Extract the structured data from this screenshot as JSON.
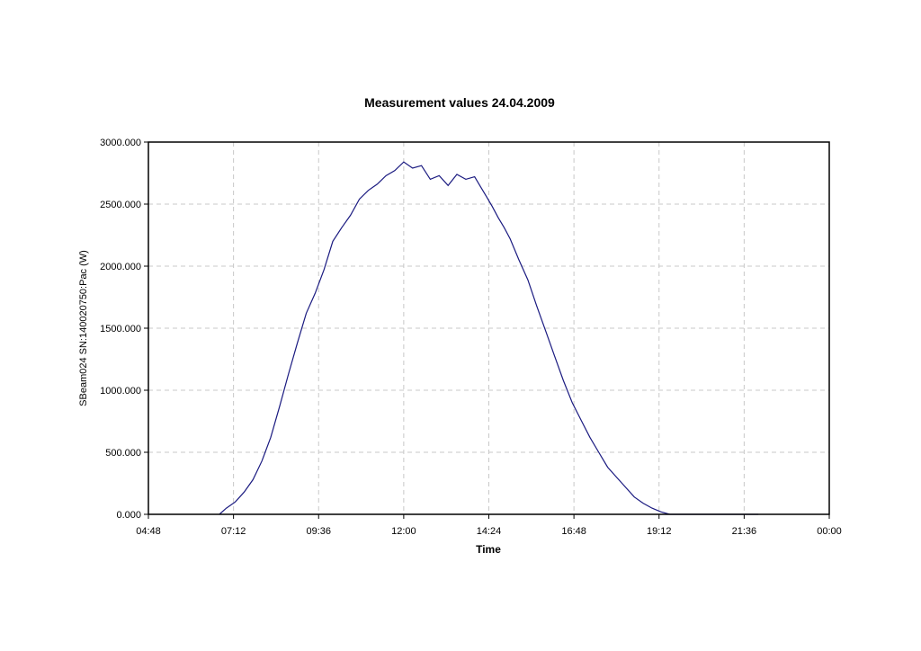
{
  "chart_data": {
    "type": "line",
    "title": "Measurement values 24.04.2009",
    "xlabel": "Time",
    "ylabel": "SBeam024 SN:140020750:Pac (W)",
    "x_ticks": [
      "04:48",
      "07:12",
      "09:36",
      "12:00",
      "14:24",
      "16:48",
      "19:12",
      "21:36",
      "00:00"
    ],
    "y_ticks": [
      "0.000",
      "500.000",
      "1000.000",
      "1500.000",
      "2000.000",
      "2500.000",
      "3000.000"
    ],
    "xlim": [
      "04:48",
      "00:00"
    ],
    "ylim": [
      0,
      3000
    ],
    "grid": true,
    "line_color": "#1a1a80",
    "series": [
      {
        "x": [
          "06:48",
          "07:00",
          "07:15",
          "07:30",
          "07:45",
          "08:00",
          "08:15",
          "08:30",
          "08:45",
          "09:00",
          "09:15",
          "09:30",
          "09:45",
          "10:00",
          "10:15",
          "10:30",
          "10:45",
          "11:00",
          "11:15",
          "11:30",
          "11:45",
          "12:00",
          "12:15",
          "12:30",
          "12:45",
          "13:00",
          "13:15",
          "13:30",
          "13:45",
          "14:00",
          "14:10",
          "14:20",
          "14:30",
          "14:40",
          "14:50",
          "15:00",
          "15:15",
          "15:30",
          "15:45",
          "16:00",
          "16:15",
          "16:30",
          "16:45",
          "17:00",
          "17:15",
          "17:30",
          "17:45",
          "18:00",
          "18:15",
          "18:30",
          "18:45",
          "19:00",
          "19:15",
          "19:30",
          "19:45",
          "20:00",
          "20:15",
          "20:30",
          "20:45",
          "21:00",
          "21:15",
          "21:30",
          "21:45",
          "22:00"
        ],
        "values": [
          0,
          50,
          100,
          180,
          280,
          430,
          620,
          870,
          1130,
          1380,
          1620,
          1780,
          1970,
          2200,
          2310,
          2410,
          2540,
          2610,
          2660,
          2730,
          2770,
          2840,
          2790,
          2810,
          2700,
          2730,
          2650,
          2740,
          2700,
          2720,
          2640,
          2560,
          2480,
          2390,
          2310,
          2220,
          2050,
          1890,
          1680,
          1480,
          1280,
          1080,
          900,
          760,
          620,
          500,
          380,
          300,
          220,
          140,
          90,
          50,
          20,
          0,
          0,
          0,
          0,
          0,
          0,
          0,
          0,
          0,
          0,
          0
        ]
      }
    ]
  }
}
